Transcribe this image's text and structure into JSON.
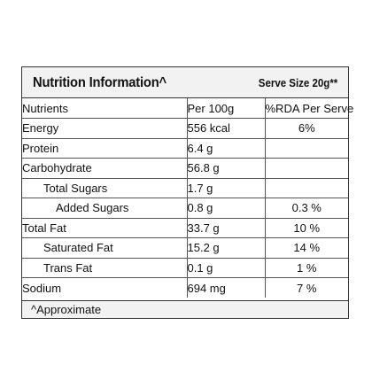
{
  "panel": {
    "title": "Nutrition Information^",
    "serve_size": "Serve Size 20g**"
  },
  "table": {
    "headers": {
      "nutrient": "Nutrients",
      "per100": "Per 100g",
      "rda": "%RDA Per Serve"
    },
    "rows": [
      {
        "nutrient": "Energy",
        "per100": "556 kcal",
        "rda": "6%"
      },
      {
        "nutrient": "Protein",
        "per100": "6.4 g",
        "rda": ""
      },
      {
        "nutrient": "Carbohydrate",
        "per100": "56.8 g",
        "rda": ""
      },
      {
        "nutrient": "Total Sugars",
        "per100": "1.7 g",
        "rda": ""
      },
      {
        "nutrient": "Added Sugars",
        "per100": "0.8 g",
        "rda": "0.3 %"
      },
      {
        "nutrient": "Total Fat",
        "per100": "33.7 g",
        "rda": "10 %"
      },
      {
        "nutrient": "Saturated Fat",
        "per100": "15.2 g",
        "rda": "14 %"
      },
      {
        "nutrient": "Trans Fat",
        "per100": "0.1 g",
        "rda": "1 %"
      },
      {
        "nutrient": "Sodium",
        "per100": "694 mg",
        "rda": "7 %"
      }
    ]
  },
  "footer": {
    "note": "^Approximate"
  }
}
